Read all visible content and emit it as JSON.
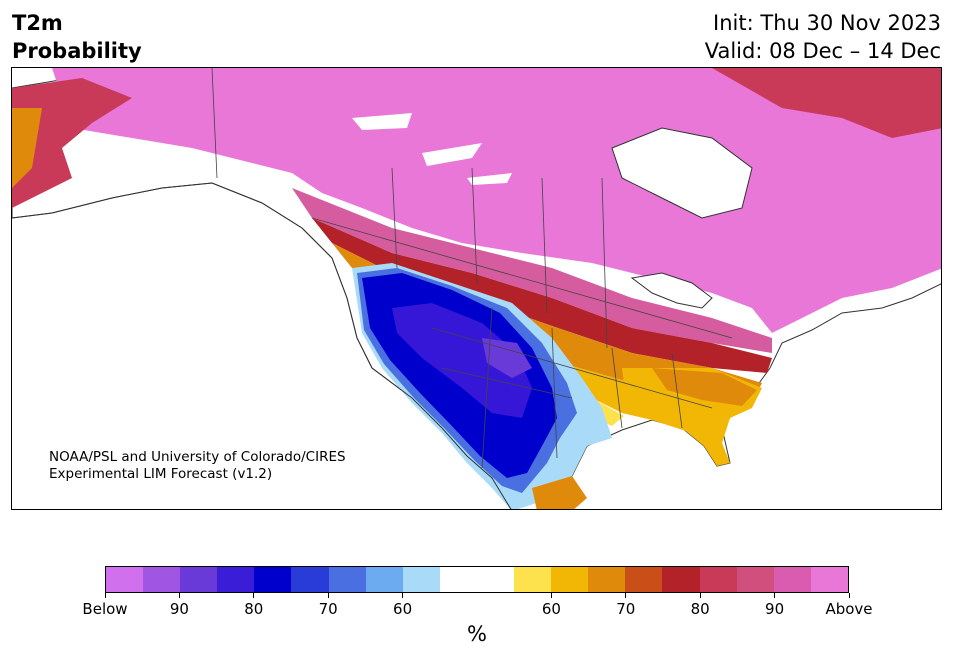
{
  "header": {
    "title_line1": "T2m",
    "title_line2": "Probability",
    "init": "Init: Thu 30 Nov 2023",
    "valid": "Valid: 08 Dec – 14 Dec"
  },
  "map": {
    "credit_line1": "NOAA/PSL and University of Colorado/CIRES",
    "credit_line2": "Experimental LIM Forecast (v1.2)",
    "region": "North America",
    "colors": {
      "above_max": "#e877d8",
      "above_90": "#d65ca0",
      "above_85": "#c83a58",
      "above_80": "#b22228",
      "above_70": "#c94e18",
      "above_65": "#e08a0c",
      "above_60": "#f2b705",
      "above_55": "#fde24d",
      "below_55": "#a9daf8",
      "below_60": "#6cabf0",
      "below_65": "#4a6fe0",
      "below_70": "#2a3cd8",
      "below_80": "#0000cc",
      "below_85": "#3617d8",
      "below_90": "#6a3ad8",
      "below_max": "#d070ec"
    }
  },
  "colorbar": {
    "unit": "%",
    "colors": [
      "#d070ec",
      "#a155e3",
      "#6a3ad8",
      "#3a1dd6",
      "#0000cc",
      "#2a3cd8",
      "#4a6fe0",
      "#6cabf0",
      "#a9daf8",
      "#ffffff",
      "#ffffff",
      "#fde24d",
      "#f2b705",
      "#e08a0c",
      "#c94e18",
      "#b22228",
      "#c83a58",
      "#d14f7c",
      "#da5cb0",
      "#e877d8"
    ],
    "tick_labels": [
      "Below",
      "90",
      "80",
      "70",
      "60",
      "60",
      "70",
      "80",
      "90",
      "Above"
    ]
  }
}
